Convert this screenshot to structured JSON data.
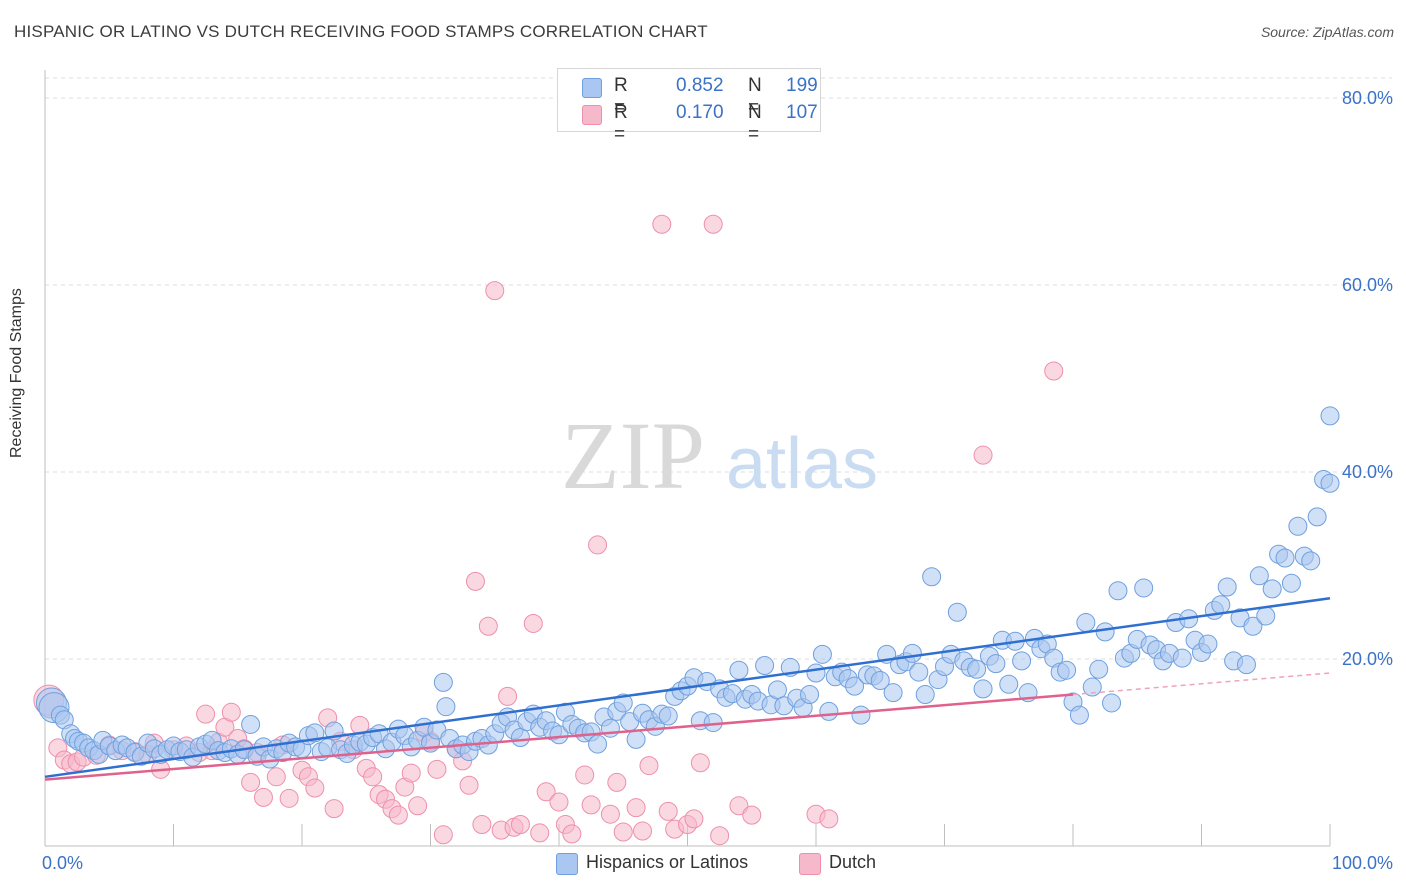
{
  "header": {
    "title": "HISPANIC OR LATINO VS DUTCH RECEIVING FOOD STAMPS CORRELATION CHART",
    "source": "Source: ZipAtlas.com"
  },
  "watermark": {
    "zip": "ZIP",
    "atlas": "atlas"
  },
  "legend": {
    "rows": [
      {
        "r_label": "R =",
        "r_value": "0.852",
        "n_label": "N =",
        "n_value": "199",
        "color": "#a9c7f0"
      },
      {
        "r_label": "R =",
        "r_value": "0.170",
        "n_label": "N =",
        "n_value": "107",
        "color": "#f6b8cb"
      }
    ]
  },
  "bottom_legend": {
    "items": [
      {
        "label": "Hispanics or Latinos",
        "color": "#a9c7f0"
      },
      {
        "label": "Dutch",
        "color": "#f6b8cb"
      }
    ]
  },
  "chart_data": {
    "type": "scatter",
    "title": "HISPANIC OR LATINO VS DUTCH RECEIVING FOOD STAMPS CORRELATION CHART",
    "xlabel": "",
    "ylabel": "Receiving Food Stamps",
    "xlim": [
      0,
      100
    ],
    "ylim": [
      0,
      80
    ],
    "x_tick_labels": [
      "0.0%",
      "100.0%"
    ],
    "y_ticks": [
      20,
      40,
      60,
      80
    ],
    "y_tick_labels": [
      "20.0%",
      "40.0%",
      "60.0%",
      "80.0%"
    ],
    "grid": true,
    "legend_position": "top-center",
    "series": [
      {
        "name": "Hispanics or Latinos",
        "color": "#a9c7f0",
        "edge_color": "#6fa0de",
        "line_color": "#2f6fcf",
        "trend": {
          "x": [
            0,
            100
          ],
          "y": [
            7.4,
            26.5
          ]
        },
        "points": [
          [
            0.5,
            15.3
          ],
          [
            0.7,
            14.8
          ],
          [
            1.2,
            14.0
          ],
          [
            1.5,
            13.5
          ],
          [
            2,
            12
          ],
          [
            2.3,
            11.5
          ],
          [
            2.6,
            11.2
          ],
          [
            3,
            11
          ],
          [
            3.4,
            10.5
          ],
          [
            3.8,
            10.2
          ],
          [
            4.2,
            9.8
          ],
          [
            4.5,
            11.3
          ],
          [
            5,
            10.7
          ],
          [
            5.5,
            10.2
          ],
          [
            6,
            10.8
          ],
          [
            6.4,
            10.5
          ],
          [
            7,
            10
          ],
          [
            7.5,
            9.6
          ],
          [
            8,
            11
          ],
          [
            8.5,
            10.4
          ],
          [
            9,
            9.8
          ],
          [
            9.5,
            10.3
          ],
          [
            10,
            10.7
          ],
          [
            10.5,
            10.1
          ],
          [
            11,
            10.3
          ],
          [
            11.5,
            9.5
          ],
          [
            12,
            10.6
          ],
          [
            12.5,
            10.9
          ],
          [
            13,
            11.3
          ],
          [
            13.5,
            10.2
          ],
          [
            14,
            10
          ],
          [
            14.5,
            10.4
          ],
          [
            15,
            9.8
          ],
          [
            15.5,
            10.3
          ],
          [
            16,
            13
          ],
          [
            16.5,
            9.6
          ],
          [
            17,
            10.6
          ],
          [
            17.5,
            9.3
          ],
          [
            18,
            10.4
          ],
          [
            18.5,
            10
          ],
          [
            19,
            11
          ],
          [
            19.5,
            10.6
          ],
          [
            20,
            10.4
          ],
          [
            20.5,
            11.8
          ],
          [
            21,
            12.1
          ],
          [
            21.5,
            10.1
          ],
          [
            22,
            10.5
          ],
          [
            22.5,
            12.3
          ],
          [
            23,
            10.3
          ],
          [
            23.5,
            9.9
          ],
          [
            24,
            10.8
          ],
          [
            24.5,
            11.1
          ],
          [
            25,
            10.9
          ],
          [
            25.5,
            11.6
          ],
          [
            26,
            12
          ],
          [
            26.5,
            10.4
          ],
          [
            27,
            11.1
          ],
          [
            27.5,
            12.5
          ],
          [
            28,
            11.8
          ],
          [
            28.5,
            10.6
          ],
          [
            29,
            11.3
          ],
          [
            29.5,
            12.7
          ],
          [
            30,
            11
          ],
          [
            30.5,
            12.4
          ],
          [
            31,
            17.5
          ],
          [
            31.2,
            14.9
          ],
          [
            31.5,
            11.5
          ],
          [
            32,
            10.4
          ],
          [
            32.5,
            10.8
          ],
          [
            33,
            10.1
          ],
          [
            33.5,
            11.2
          ],
          [
            34,
            11.5
          ],
          [
            34.5,
            10.8
          ],
          [
            35,
            12
          ],
          [
            35.5,
            13.1
          ],
          [
            36,
            13.8
          ],
          [
            36.5,
            12.4
          ],
          [
            37,
            11.6
          ],
          [
            37.5,
            13.3
          ],
          [
            38,
            14.1
          ],
          [
            38.5,
            12.7
          ],
          [
            39,
            13.4
          ],
          [
            39.5,
            12.3
          ],
          [
            40,
            11.9
          ],
          [
            40.5,
            14.3
          ],
          [
            41,
            13
          ],
          [
            41.5,
            12.6
          ],
          [
            42,
            12.1
          ],
          [
            42.5,
            12.2
          ],
          [
            43,
            10.9
          ],
          [
            43.5,
            13.8
          ],
          [
            44,
            12.6
          ],
          [
            44.5,
            14.4
          ],
          [
            45,
            15.3
          ],
          [
            45.5,
            13.3
          ],
          [
            46,
            11.4
          ],
          [
            46.5,
            14.2
          ],
          [
            47,
            13.5
          ],
          [
            47.5,
            12.8
          ],
          [
            48,
            14.1
          ],
          [
            48.5,
            13.9
          ],
          [
            49,
            16
          ],
          [
            49.5,
            16.6
          ],
          [
            50,
            17.1
          ],
          [
            50.5,
            18
          ],
          [
            51,
            13.4
          ],
          [
            51.5,
            17.6
          ],
          [
            52,
            13.2
          ],
          [
            52.5,
            16.8
          ],
          [
            53,
            15.9
          ],
          [
            53.5,
            16.3
          ],
          [
            54,
            18.8
          ],
          [
            54.5,
            15.7
          ],
          [
            55,
            16.2
          ],
          [
            55.5,
            15.5
          ],
          [
            56,
            19.3
          ],
          [
            56.5,
            15.1
          ],
          [
            57,
            16.7
          ],
          [
            57.5,
            15
          ],
          [
            58,
            19.1
          ],
          [
            58.5,
            15.8
          ],
          [
            59,
            14.8
          ],
          [
            59.5,
            16.2
          ],
          [
            60,
            18.5
          ],
          [
            60.5,
            20.5
          ],
          [
            61,
            14.4
          ],
          [
            61.5,
            18.1
          ],
          [
            62,
            18.6
          ],
          [
            62.5,
            17.9
          ],
          [
            63,
            17.1
          ],
          [
            63.5,
            14
          ],
          [
            64,
            18.3
          ],
          [
            64.5,
            18.2
          ],
          [
            65,
            17.7
          ],
          [
            65.5,
            20.5
          ],
          [
            66,
            16.4
          ],
          [
            66.5,
            19.4
          ],
          [
            67,
            19.7
          ],
          [
            67.5,
            20.6
          ],
          [
            68,
            18.6
          ],
          [
            68.5,
            16.2
          ],
          [
            69,
            28.8
          ],
          [
            69.5,
            17.8
          ],
          [
            70,
            19.2
          ],
          [
            70.5,
            20.5
          ],
          [
            71,
            25
          ],
          [
            71.5,
            19.8
          ],
          [
            72,
            19.1
          ],
          [
            72.5,
            18.9
          ],
          [
            73,
            16.8
          ],
          [
            73.5,
            20.3
          ],
          [
            74,
            19.5
          ],
          [
            74.5,
            22
          ],
          [
            75,
            17.3
          ],
          [
            75.5,
            21.9
          ],
          [
            76,
            19.8
          ],
          [
            76.5,
            16.4
          ],
          [
            77,
            22.2
          ],
          [
            77.5,
            21.1
          ],
          [
            78,
            21.6
          ],
          [
            78.5,
            20.1
          ],
          [
            79,
            18.6
          ],
          [
            79.5,
            18.8
          ],
          [
            80,
            15.4
          ],
          [
            80.5,
            14
          ],
          [
            81,
            23.9
          ],
          [
            81.5,
            17
          ],
          [
            82,
            18.9
          ],
          [
            82.5,
            22.9
          ],
          [
            83,
            15.3
          ],
          [
            83.5,
            27.3
          ],
          [
            84,
            20.1
          ],
          [
            84.5,
            20.6
          ],
          [
            85,
            22.1
          ],
          [
            85.5,
            27.6
          ],
          [
            86,
            21.5
          ],
          [
            86.5,
            21
          ],
          [
            87,
            19.8
          ],
          [
            87.5,
            20.6
          ],
          [
            88,
            23.9
          ],
          [
            88.5,
            20.1
          ],
          [
            89,
            24.3
          ],
          [
            89.5,
            22
          ],
          [
            90,
            20.7
          ],
          [
            90.5,
            21.6
          ],
          [
            91,
            25.2
          ],
          [
            91.5,
            25.8
          ],
          [
            92,
            27.7
          ],
          [
            92.5,
            19.8
          ],
          [
            93,
            24.4
          ],
          [
            93.5,
            19.4
          ],
          [
            94,
            23.5
          ],
          [
            94.5,
            28.9
          ],
          [
            95,
            24.6
          ],
          [
            95.5,
            27.5
          ],
          [
            96,
            31.2
          ],
          [
            96.5,
            30.8
          ],
          [
            97,
            28.1
          ],
          [
            97.5,
            34.2
          ],
          [
            98,
            31
          ],
          [
            98.5,
            30.5
          ],
          [
            99,
            35.2
          ],
          [
            99.5,
            39.2
          ],
          [
            100,
            38.8
          ],
          [
            100.5,
            46
          ]
        ]
      },
      {
        "name": "Dutch",
        "color": "#f6b8cb",
        "edge_color": "#ee8fab",
        "line_color": "#e0628c",
        "trend": {
          "x": [
            0,
            80
          ],
          "y": [
            7.1,
            16.2
          ]
        },
        "trend_extension": {
          "x": [
            80,
            100
          ],
          "y": [
            16.2,
            18.5
          ]
        },
        "points": [
          [
            0.3,
            15.6
          ],
          [
            1,
            10.5
          ],
          [
            1.5,
            9.2
          ],
          [
            2,
            8.8
          ],
          [
            2.5,
            9
          ],
          [
            3,
            9.5
          ],
          [
            4,
            9.7
          ],
          [
            5,
            10.8
          ],
          [
            6,
            10.2
          ],
          [
            7,
            10.1
          ],
          [
            8,
            9.8
          ],
          [
            8.5,
            11
          ],
          [
            9,
            8.2
          ],
          [
            10,
            10.3
          ],
          [
            11,
            10.7
          ],
          [
            12,
            10
          ],
          [
            12.5,
            14.1
          ],
          [
            13,
            10.2
          ],
          [
            13.5,
            11.1
          ],
          [
            14,
            12.7
          ],
          [
            14.5,
            14.3
          ],
          [
            15,
            11.5
          ],
          [
            15.5,
            10.4
          ],
          [
            16,
            6.8
          ],
          [
            16.5,
            10
          ],
          [
            17,
            5.2
          ],
          [
            18,
            7.4
          ],
          [
            18.5,
            10.8
          ],
          [
            19,
            5.1
          ],
          [
            20,
            8.1
          ],
          [
            20.5,
            7.4
          ],
          [
            21,
            6.2
          ],
          [
            22,
            13.7
          ],
          [
            22.5,
            4
          ],
          [
            23,
            11.2
          ],
          [
            24,
            10.3
          ],
          [
            24.5,
            12.9
          ],
          [
            25,
            8.3
          ],
          [
            25.5,
            7.4
          ],
          [
            26,
            5.5
          ],
          [
            26.5,
            5
          ],
          [
            27,
            4
          ],
          [
            27.5,
            3.3
          ],
          [
            28,
            6.3
          ],
          [
            28.5,
            7.8
          ],
          [
            29,
            4.3
          ],
          [
            29.5,
            12.1
          ],
          [
            30,
            11.2
          ],
          [
            30.5,
            8.2
          ],
          [
            31,
            1.2
          ],
          [
            32,
            10.4
          ],
          [
            32.5,
            9.1
          ],
          [
            33,
            6.5
          ],
          [
            33.5,
            28.3
          ],
          [
            34,
            2.3
          ],
          [
            34.5,
            23.5
          ],
          [
            35,
            59.4
          ],
          [
            35.5,
            1.7
          ],
          [
            36,
            16
          ],
          [
            36.5,
            2
          ],
          [
            37,
            2.3
          ],
          [
            38,
            23.8
          ],
          [
            38.5,
            1.4
          ],
          [
            39,
            5.8
          ],
          [
            40,
            4.7
          ],
          [
            40.5,
            2.3
          ],
          [
            41,
            1.3
          ],
          [
            42,
            7.6
          ],
          [
            42.5,
            4.4
          ],
          [
            43,
            32.2
          ],
          [
            44,
            3.4
          ],
          [
            44.5,
            6.8
          ],
          [
            45,
            1.5
          ],
          [
            46,
            4.1
          ],
          [
            46.5,
            1.6
          ],
          [
            47,
            8.6
          ],
          [
            48,
            66.5
          ],
          [
            48.5,
            3.7
          ],
          [
            49,
            1.8
          ],
          [
            50,
            2.3
          ],
          [
            50.5,
            2.9
          ],
          [
            51,
            8.9
          ],
          [
            52,
            66.5
          ],
          [
            52.5,
            1.1
          ],
          [
            54,
            4.3
          ],
          [
            55,
            3.3
          ],
          [
            60,
            3.4
          ],
          [
            61,
            2.9
          ],
          [
            78.5,
            50.8
          ],
          [
            73,
            41.8
          ]
        ]
      }
    ]
  }
}
